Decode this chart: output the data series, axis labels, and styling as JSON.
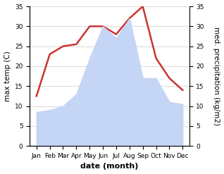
{
  "months": [
    "Jan",
    "Feb",
    "Mar",
    "Apr",
    "May",
    "Jun",
    "Jul",
    "Aug",
    "Sep",
    "Oct",
    "Nov",
    "Dec"
  ],
  "max_temp": [
    12.5,
    23,
    25,
    25.5,
    30,
    30,
    28,
    32,
    35,
    22,
    17,
    14
  ],
  "precipitation": [
    8.5,
    9,
    10,
    13,
    22,
    30,
    27,
    32,
    17,
    17,
    11,
    10.5
  ],
  "temp_color": "#cc3333",
  "precip_fill_color": "#c5d5f5",
  "temp_ylim": [
    0,
    35
  ],
  "precip_ylim": [
    0,
    35
  ],
  "yticks": [
    0,
    5,
    10,
    15,
    20,
    25,
    30,
    35
  ],
  "xlabel": "date (month)",
  "ylabel_left": "max temp (C)",
  "ylabel_right": "med. precipitation (kg/m2)",
  "background_color": "#ffffff",
  "grid_color": "#cccccc",
  "tick_fontsize": 6.5,
  "label_fontsize": 7.5,
  "xlabel_fontsize": 8
}
